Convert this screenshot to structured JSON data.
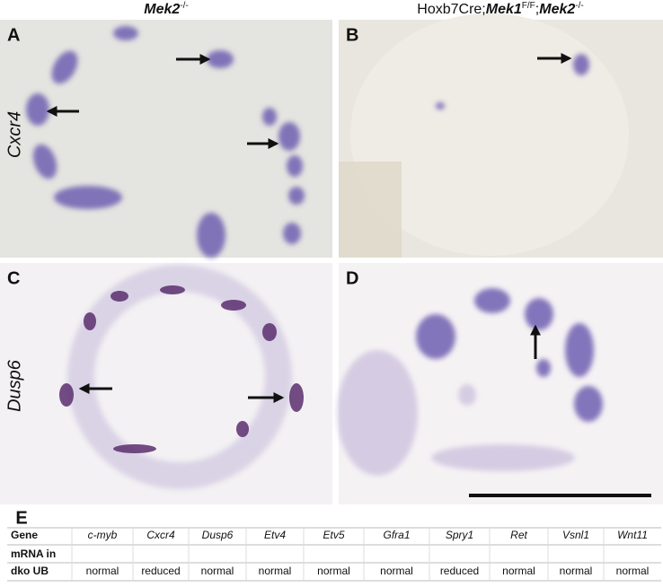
{
  "panels": [
    "A",
    "B",
    "C",
    "D"
  ],
  "row_labels": [
    "Cxcr4",
    "Dusp6"
  ],
  "column_titles": [
    [
      {
        "text": "Mek2",
        "style": "gene"
      },
      {
        "text": "-/-",
        "style": "sup"
      }
    ],
    [
      {
        "text": "Hoxb7Cre;",
        "style": "plain"
      },
      {
        "text": "Mek1",
        "style": "gene"
      },
      {
        "text": "F/F",
        "style": "sup"
      },
      {
        "text": ";",
        "style": "plain"
      },
      {
        "text": "Mek2",
        "style": "gene"
      },
      {
        "text": "-/-",
        "style": "sup"
      }
    ]
  ],
  "table": {
    "label": "E",
    "header_label": "Gene",
    "genes": [
      "c-myb",
      "Cxcr4",
      "Dusp6",
      "Etv4",
      "Etv5",
      "Gfra1",
      "Spry1",
      "Ret",
      "Vsnl1",
      "Wnt11"
    ],
    "row_label": [
      "mRNA in",
      "dko UB"
    ],
    "values": [
      "normal",
      "reduced",
      "normal",
      "normal",
      "normal",
      "normal",
      "reduced",
      "normal",
      "normal",
      "normal"
    ]
  }
}
